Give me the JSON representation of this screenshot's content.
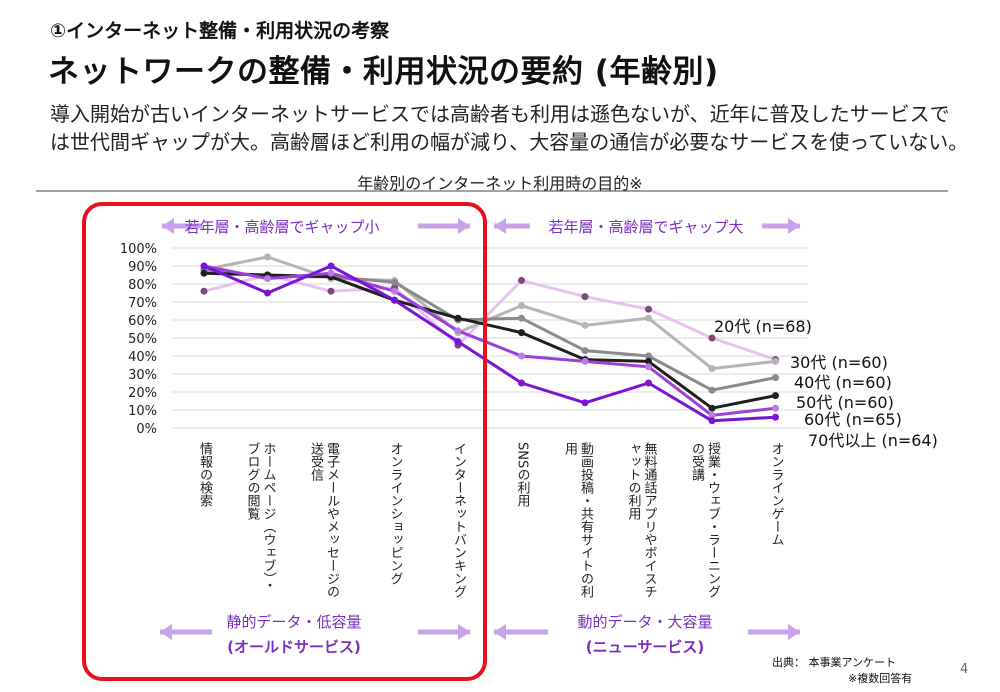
{
  "section_title": "①インターネット整備・利用状況の考察",
  "slide_title": "ネットワークの整備・利用状況の要約 (年齢別)",
  "summary_lines": [
    "導入開始が古いインターネットサービスでは高齢者も利用は遜色ないが、近年に普及したサービスで",
    "は世代間ギャップが大。高齢層ほど利用の幅が減り、大容量の通信が必要なサービスを使っていない。"
  ],
  "annotations": {
    "small_gap": "若年層・高齢層でギャップ小",
    "large_gap": "若年層・高齢層でギャップ大",
    "static_label": "静的データ・低容量",
    "static_sub": "(オールドサービス)",
    "dynamic_label": "動的データ・大容量",
    "dynamic_sub": "(ニューサービス)"
  },
  "footer": {
    "source": "出典： 本事業アンケート",
    "note": "※複数回答有",
    "page": "4"
  },
  "colors": {
    "highlight_box": "#e8121e",
    "arrow": "#c9a3ea",
    "annotation_text": "#7b2fc0",
    "grid": "#d9d9d9"
  },
  "chart_data": {
    "type": "line",
    "title": "年齢別のインターネット利用時の目的※",
    "categories": [
      "情報の検索",
      "ホームページ（ウェブ）・ブログの閲覧",
      "電子メールやメッセージの送受信",
      "オンラインショッピング",
      "インターネットバンキング",
      "SNSの利用",
      "動画投稿・共有サイトの利用",
      "無料通話アプリやボイスチャットの利用",
      "授業・ウェブ・ラーニングの受講",
      "オンラインゲーム"
    ],
    "ylim": [
      0,
      100
    ],
    "yticks": [
      "0%",
      "10%",
      "20%",
      "30%",
      "40%",
      "50%",
      "60%",
      "70%",
      "80%",
      "90%",
      "100%"
    ],
    "legend": "right-labels",
    "grid": true,
    "series": [
      {
        "name": "20代 (n=68)",
        "color": "#e6c2f2",
        "marker": "#7a4a78",
        "values": [
          76,
          85,
          76,
          78,
          46,
          82,
          73,
          66,
          50,
          38
        ]
      },
      {
        "name": "30代 (n=60)",
        "color": "#b4b4b4",
        "marker": "#b4b4b4",
        "values": [
          88,
          95,
          83,
          82,
          53,
          68,
          57,
          61,
          33,
          37
        ]
      },
      {
        "name": "40代 (n=60)",
        "color": "#8a8a8a",
        "marker": "#8a8a8a",
        "values": [
          88,
          84,
          84,
          81,
          60,
          61,
          43,
          40,
          21,
          28
        ]
      },
      {
        "name": "50代 (n=60)",
        "color": "#1f1f1f",
        "marker": "#1f1f1f",
        "values": [
          86,
          85,
          84,
          71,
          61,
          53,
          38,
          37,
          11,
          18
        ]
      },
      {
        "name": "60代 (n=65)",
        "color": "#9b40d8",
        "marker": "#c07ae8",
        "values": [
          90,
          83,
          86,
          76,
          54,
          40,
          37,
          34,
          7,
          11
        ]
      },
      {
        "name": "70代以上 (n=64)",
        "color": "#7a14d6",
        "marker": "#7a14d6",
        "values": [
          90,
          75,
          90,
          71,
          48,
          25,
          14,
          25,
          4,
          6
        ]
      }
    ]
  }
}
